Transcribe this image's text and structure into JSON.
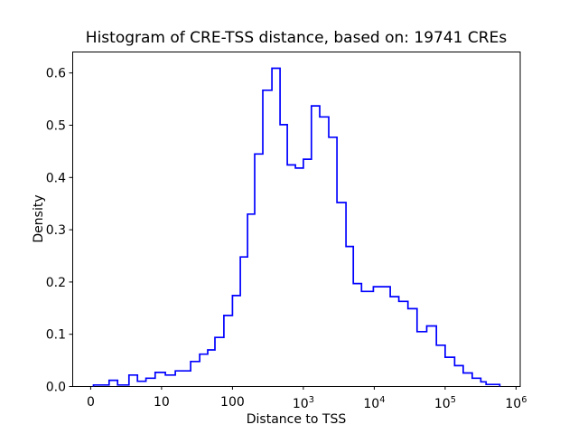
{
  "figure": {
    "background": "#ffffff",
    "frame_color": "#000000"
  },
  "chart_data": {
    "type": "bar",
    "subtype": "step-histogram",
    "title": "Histogram of CRE-TSS distance, based on: 19741 CREs",
    "xlabel": "Distance to TSS",
    "ylabel": "Density",
    "n_samples": 19741,
    "line_color": "#0000ff",
    "x_scale": "symlog",
    "linthresh": 10,
    "grid": false,
    "legend": false,
    "ylim": [
      0.0,
      0.64
    ],
    "xlim": [
      -2.5,
      1250000
    ],
    "bin_edges": [
      0.4,
      2.6,
      3.8,
      5.4,
      6.6,
      7.8,
      9.1,
      11.3,
      15.6,
      25.7,
      34.5,
      44.8,
      56.6,
      75.7,
      100,
      129,
      163,
      206,
      268,
      360,
      469,
      594,
      773,
      1000,
      1300,
      1700,
      2280,
      2980,
      3990,
      5060,
      6620,
      9710,
      16800,
      22200,
      29900,
      40200,
      55000,
      75300,
      100000,
      136000,
      180000,
      241000,
      319000,
      378000,
      589000
    ],
    "densities": [
      0.003,
      0.012,
      0.003,
      0.022,
      0.01,
      0.016,
      0.027,
      0.022,
      0.03,
      0.048,
      0.062,
      0.07,
      0.094,
      0.136,
      0.174,
      0.248,
      0.33,
      0.445,
      0.567,
      0.609,
      0.501,
      0.424,
      0.418,
      0.435,
      0.537,
      0.516,
      0.477,
      0.352,
      0.268,
      0.197,
      0.182,
      0.191,
      0.172,
      0.163,
      0.149,
      0.105,
      0.116,
      0.079,
      0.056,
      0.04,
      0.026,
      0.016,
      0.009,
      0.004
    ],
    "x_ticks": [
      {
        "label": "0",
        "exp": "",
        "value": 0
      },
      {
        "label": "10",
        "exp": "",
        "value": 10
      },
      {
        "label": "100",
        "exp": "",
        "value": 100
      },
      {
        "label": "10",
        "exp": "3",
        "value": 1000
      },
      {
        "label": "10",
        "exp": "4",
        "value": 10000
      },
      {
        "label": "10",
        "exp": "5",
        "value": 100000
      },
      {
        "label": "10",
        "exp": "6",
        "value": 1000000
      }
    ],
    "y_ticks": [
      {
        "label": "0.0",
        "value": 0.0
      },
      {
        "label": "0.1",
        "value": 0.1
      },
      {
        "label": "0.2",
        "value": 0.2
      },
      {
        "label": "0.3",
        "value": 0.3
      },
      {
        "label": "0.4",
        "value": 0.4
      },
      {
        "label": "0.5",
        "value": 0.5
      },
      {
        "label": "0.6",
        "value": 0.6
      }
    ]
  }
}
